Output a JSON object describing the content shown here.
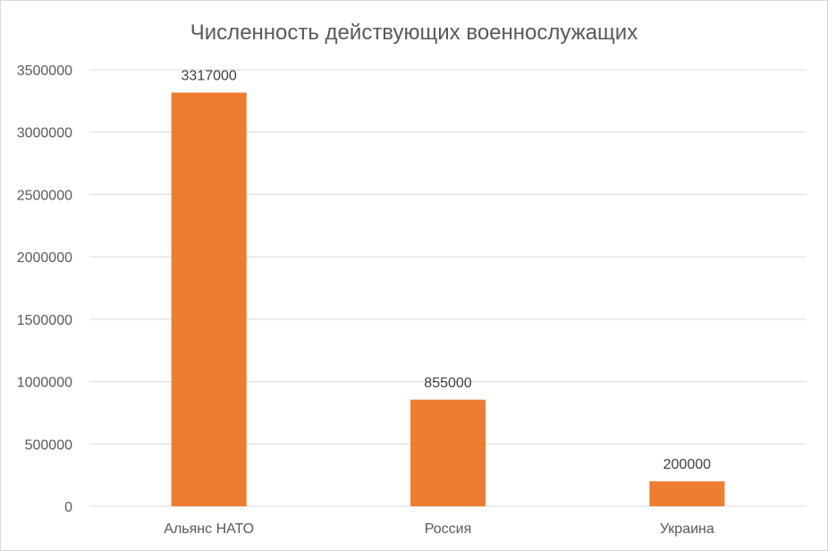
{
  "chart_data": {
    "type": "bar",
    "title": "Численность действующих военнослужащих",
    "xlabel": "",
    "ylabel": "",
    "categories": [
      "Альянс НАТО",
      "Россия",
      "Украина"
    ],
    "values": [
      3317000,
      855000,
      200000
    ],
    "data_labels": [
      "3317000",
      "855000",
      "200000"
    ],
    "ylim": [
      0,
      3500000
    ],
    "yticks": [
      0,
      500000,
      1000000,
      1500000,
      2000000,
      2500000,
      3000000,
      3500000
    ],
    "ytick_labels": [
      "0",
      "500000",
      "1000000",
      "1500000",
      "2000000",
      "2500000",
      "3000000",
      "3500000"
    ],
    "grid": true,
    "legend": "none",
    "colors": {
      "bar": "#ED7D31",
      "grid": "#D9D9D9",
      "text": "#595959"
    }
  }
}
